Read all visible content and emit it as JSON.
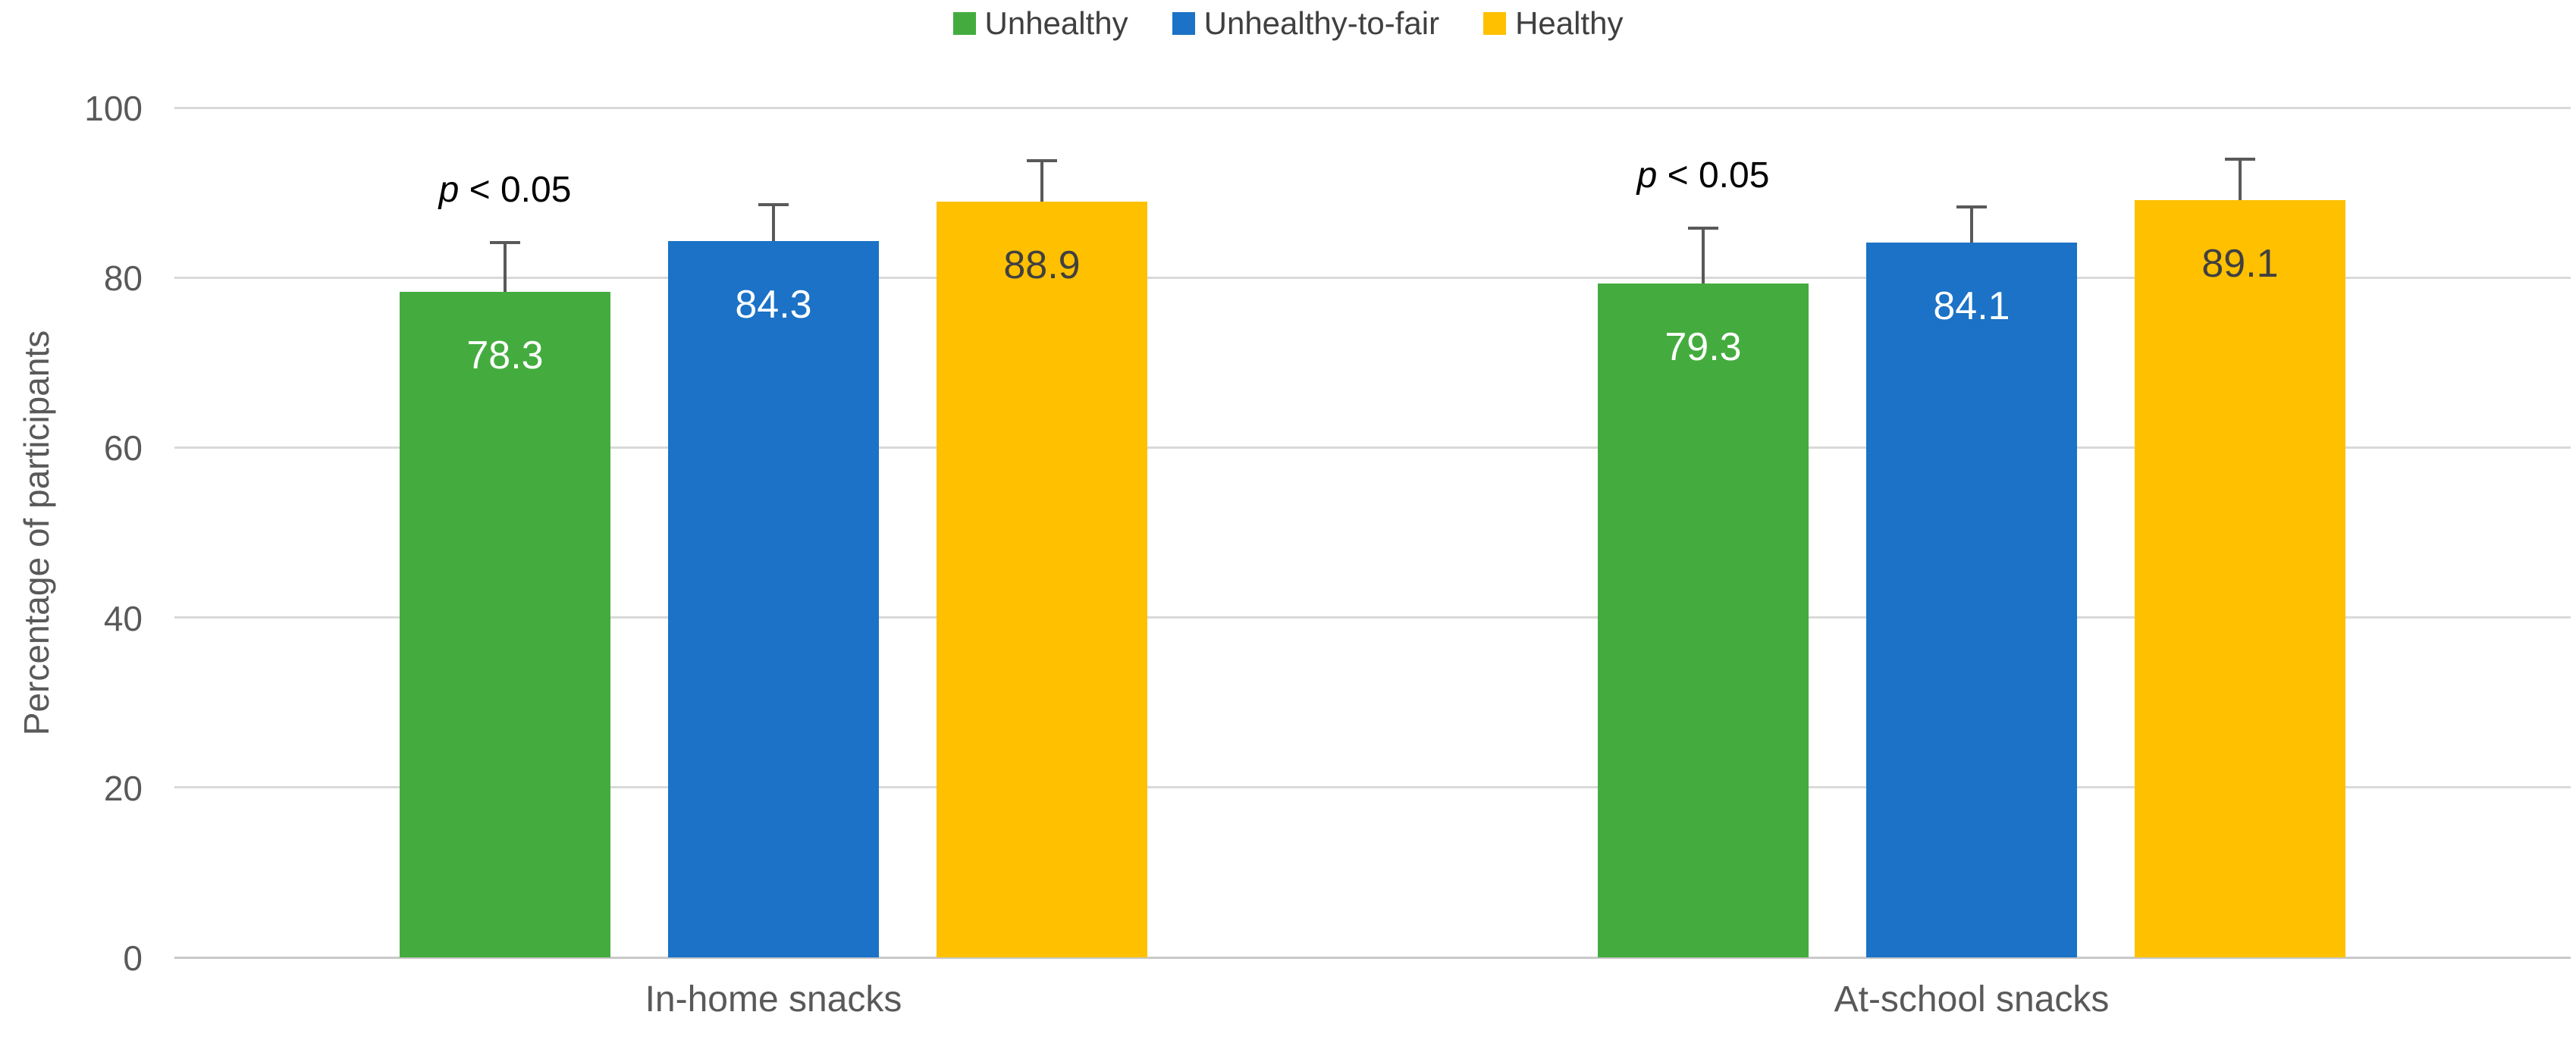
{
  "chart_data": {
    "type": "bar",
    "title": "",
    "xlabel": "",
    "ylabel": "Percentage of participants",
    "ylim": [
      0,
      100
    ],
    "yticks": [
      0,
      20,
      40,
      60,
      80,
      100
    ],
    "grid": true,
    "legend_position": "top",
    "categories": [
      "In-home snacks",
      "At-school snacks"
    ],
    "series": [
      {
        "name": "Unhealthy",
        "color": "#44AC3E",
        "label_color": "#FFFFFF",
        "values": [
          78.3,
          79.3
        ],
        "error_plus": [
          5.8,
          6.5
        ]
      },
      {
        "name": "Unhealthy-to-fair",
        "color": "#1B72C6",
        "label_color": "#FFFFFF",
        "values": [
          84.3,
          84.1
        ],
        "error_plus": [
          4.3,
          4.2
        ]
      },
      {
        "name": "Healthy",
        "color": "#FFC000",
        "label_color": "#404040",
        "values": [
          88.9,
          89.1
        ],
        "error_plus": [
          4.9,
          4.8
        ]
      }
    ],
    "annotations": [
      {
        "text": "p < 0.05",
        "category": "In-home snacks",
        "series": "Unhealthy"
      },
      {
        "text": "p < 0.05",
        "category": "At-school snacks",
        "series": "Unhealthy"
      }
    ]
  },
  "colors": {
    "background": "#FFFFFF",
    "gridline": "#D9D9D9",
    "axis_line": "#C9C9C9",
    "error_bar": "#595959",
    "axis_text": "#595959",
    "legend_text": "#404040",
    "annotation_text": "#000000"
  }
}
